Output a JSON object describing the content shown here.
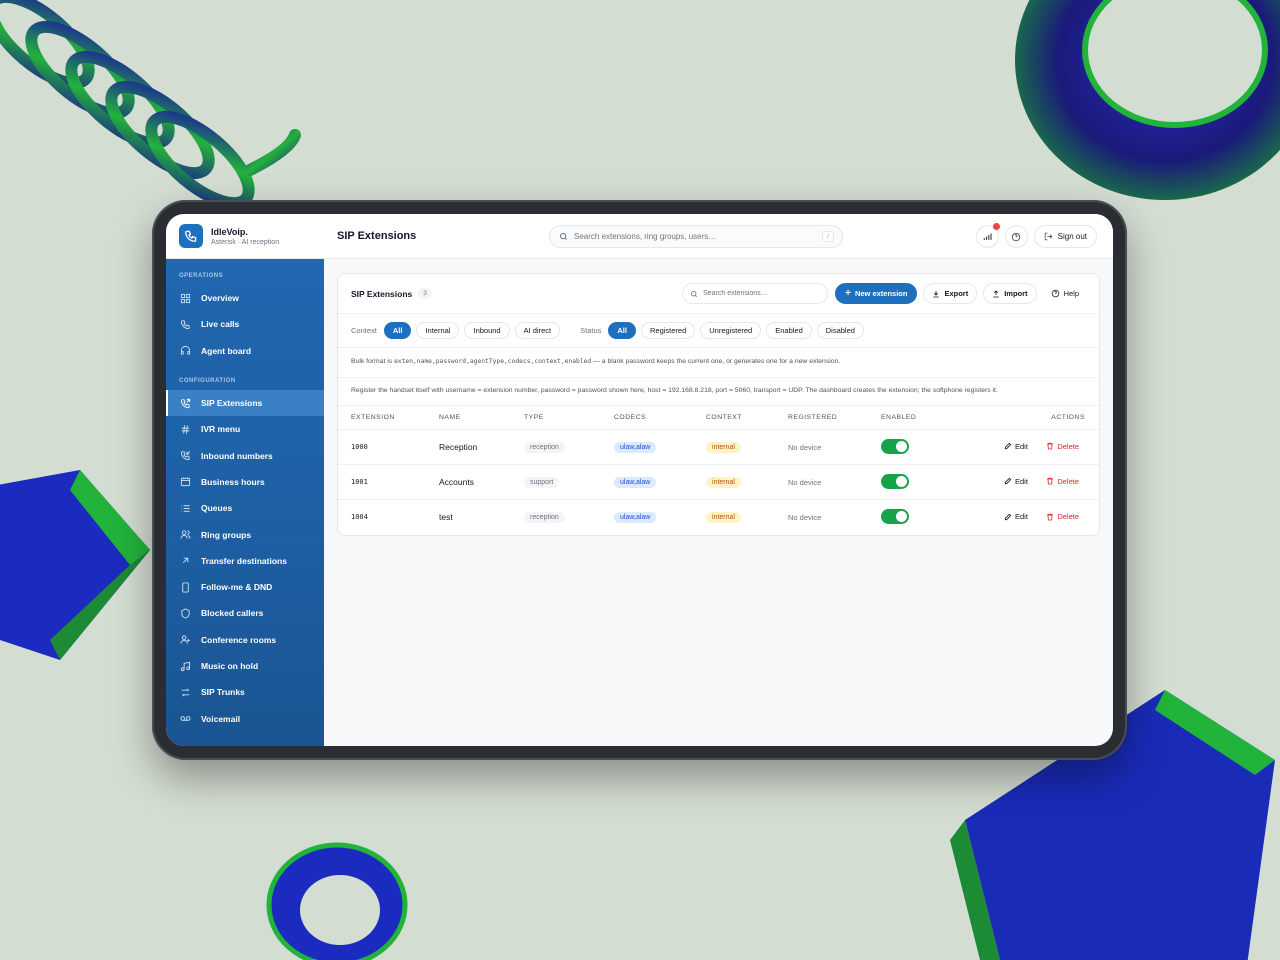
{
  "brand": {
    "name": "IdleVoip.",
    "subtitle": "Asterisk · AI reception"
  },
  "sidebar": {
    "sections": [
      {
        "label": "OPERATIONS",
        "items": [
          {
            "label": "Overview",
            "icon": "grid-icon"
          },
          {
            "label": "Live calls",
            "icon": "phone-icon"
          },
          {
            "label": "Agent board",
            "icon": "headset-icon"
          }
        ]
      },
      {
        "label": "CONFIGURATION",
        "items": [
          {
            "label": "SIP Extensions",
            "icon": "phone-forward-icon",
            "active": true
          },
          {
            "label": "IVR menu",
            "icon": "hash-icon"
          },
          {
            "label": "Inbound numbers",
            "icon": "phone-incoming-icon"
          },
          {
            "label": "Business hours",
            "icon": "calendar-icon"
          },
          {
            "label": "Queues",
            "icon": "list-icon"
          },
          {
            "label": "Ring groups",
            "icon": "users-icon"
          },
          {
            "label": "Transfer destinations",
            "icon": "arrow-up-right-icon"
          },
          {
            "label": "Follow-me & DND",
            "icon": "smartphone-icon"
          },
          {
            "label": "Blocked callers",
            "icon": "shield-icon"
          },
          {
            "label": "Conference rooms",
            "icon": "user-group-icon"
          },
          {
            "label": "Music on hold",
            "icon": "music-icon"
          },
          {
            "label": "SIP Trunks",
            "icon": "swap-icon"
          },
          {
            "label": "Voicemail",
            "icon": "voicemail-icon"
          }
        ]
      }
    ]
  },
  "topbar": {
    "title": "SIP Extensions",
    "search_placeholder": "Search extensions, ring groups, users…",
    "search_shortcut": "/",
    "signout_label": "Sign out"
  },
  "card": {
    "title": "SIP Extensions",
    "count": "3",
    "search_placeholder": "Search extensions…",
    "new_label": "New extension",
    "export_label": "Export",
    "import_label": "Import",
    "help_label": "Help"
  },
  "filters": {
    "context_label": "Context",
    "context_options": [
      "All",
      "Internal",
      "Inbound",
      "AI direct"
    ],
    "status_label": "Status",
    "status_options": [
      "All",
      "Registered",
      "Unregistered",
      "Enabled",
      "Disabled"
    ]
  },
  "notes": {
    "bulk_prefix": "Bulk format is ",
    "bulk_format": "exten,name,password,agentType,codecs,context,enabled",
    "bulk_suffix": " — a blank password keeps the current one, or generates one for a new extension.",
    "register": "Register the handset itself with username = extension number, password = password shown here, host = 192.168.8.218, port = 5060, transport = UDP. The dashboard creates the extension; the softphone registers it."
  },
  "table": {
    "headers": [
      "EXTENSION",
      "NAME",
      "TYPE",
      "CODECS",
      "CONTEXT",
      "REGISTERED",
      "ENABLED",
      "ACTIONS"
    ],
    "edit_label": "Edit",
    "delete_label": "Delete",
    "rows": [
      {
        "extension": "1000",
        "name": "Reception",
        "type": "reception",
        "codecs": "ulaw,alaw",
        "context": "internal",
        "registered": "No device",
        "enabled": true
      },
      {
        "extension": "1001",
        "name": "Accounts",
        "type": "support",
        "codecs": "ulaw,alaw",
        "context": "internal",
        "registered": "No device",
        "enabled": true
      },
      {
        "extension": "1004",
        "name": "test",
        "type": "reception",
        "codecs": "ulaw,alaw",
        "context": "internal",
        "registered": "No device",
        "enabled": true
      }
    ]
  },
  "colors": {
    "accent": "#1f6fbf",
    "sidebar": "#1d5fa3",
    "enabled": "#16a34a",
    "danger": "#dc2626"
  }
}
